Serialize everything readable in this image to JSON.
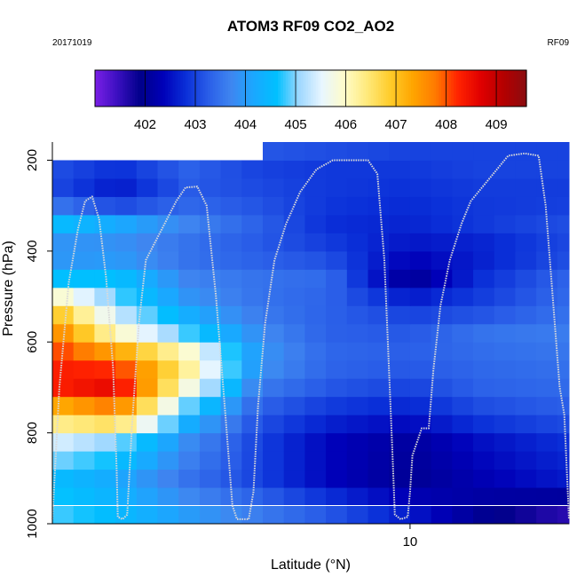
{
  "chart_data": {
    "type": "heatmap",
    "title": "ATOM3 RF09 CO2_AO2",
    "date_label": "20171019",
    "flight_label": "RF09",
    "xlabel": "Latitude (°N)",
    "ylabel": "Pressure (hPa)",
    "xlim": [
      -5.3,
      16.8
    ],
    "ylim": [
      1000,
      160
    ],
    "y_reversed": true,
    "x_ticks": [
      10
    ],
    "y_ticks": [
      200,
      400,
      600,
      800,
      1000
    ],
    "colorbar": {
      "min": 401.0,
      "max": 409.6,
      "tick_values": [
        402,
        403,
        404,
        405,
        406,
        407,
        408,
        409
      ],
      "tick_labels": [
        "402",
        "403",
        "404",
        "405",
        "406",
        "407",
        "408",
        "409"
      ],
      "colors": [
        "#7b1fe6",
        "#3a0fc0",
        "#00008a",
        "#0000b8",
        "#0a2fd8",
        "#2a5ee8",
        "#3f86f0",
        "#1aa8ff",
        "#00c0ff",
        "#9fd8ff",
        "#e8f6ff",
        "#fffcc8",
        "#ffe97a",
        "#ffcc2a",
        "#ffa500",
        "#ff7a00",
        "#ff2200",
        "#e00000",
        "#b40000",
        "#8a0c10"
      ]
    },
    "grid": {
      "lat_edges": [
        -5.3,
        -4.4,
        -3.5,
        -2.6,
        -1.7,
        -0.8,
        0.1,
        1.0,
        1.9,
        2.8,
        3.7,
        4.6,
        5.5,
        6.4,
        7.3,
        8.2,
        9.1,
        10.0,
        10.9,
        11.8,
        12.7,
        13.6,
        14.5,
        15.4,
        16.3,
        16.8
      ],
      "p_edges": [
        1000,
        960,
        920,
        880,
        840,
        800,
        760,
        720,
        680,
        640,
        600,
        560,
        520,
        480,
        440,
        400,
        360,
        320,
        280,
        240,
        200,
        160
      ],
      "anchor_lat": [
        -5.0,
        -2.5,
        0.5,
        3.5,
        6.5,
        10.0,
        13.0,
        16.5
      ],
      "anchor_p": [
        980,
        900,
        820,
        760,
        700,
        640,
        580,
        520,
        460,
        400,
        340,
        280,
        220,
        180
      ],
      "anchor_values": [
        [
          404.8,
          404.5,
          404.0,
          403.6,
          403.2,
          402.6,
          402.0,
          401.6
        ],
        [
          404.5,
          404.2,
          403.5,
          403.0,
          402.4,
          402.0,
          402.3,
          402.6
        ],
        [
          405.4,
          405.0,
          403.8,
          403.0,
          402.4,
          402.1,
          402.5,
          402.8
        ],
        [
          406.8,
          407.4,
          404.5,
          403.2,
          402.8,
          402.6,
          403.0,
          403.2
        ],
        [
          408.3,
          408.6,
          405.8,
          403.6,
          403.2,
          403.0,
          403.3,
          403.4
        ],
        [
          408.3,
          408.0,
          406.5,
          404.0,
          403.4,
          403.3,
          403.4,
          403.5
        ],
        [
          407.6,
          406.0,
          404.8,
          403.8,
          403.3,
          403.2,
          403.5,
          403.6
        ],
        [
          406.6,
          405.0,
          404.0,
          403.5,
          403.3,
          402.9,
          403.0,
          403.4
        ],
        [
          404.6,
          404.6,
          403.7,
          403.5,
          403.4,
          402.0,
          402.8,
          403.3
        ],
        [
          403.6,
          403.7,
          403.4,
          403.2,
          403.0,
          402.5,
          402.6,
          403.0
        ],
        [
          404.5,
          404.2,
          403.7,
          403.3,
          402.8,
          402.7,
          402.9,
          403.1
        ],
        [
          403.0,
          402.5,
          403.2,
          403.1,
          402.9,
          402.8,
          402.9,
          402.9
        ],
        [
          403.1,
          402.8,
          403.3,
          403.0,
          402.9,
          402.9,
          403.0,
          403.0
        ],
        [
          403.2,
          403.2,
          403.3,
          403.2,
          403.1,
          403.0,
          403.0,
          403.0
        ]
      ],
      "missing_region": {
        "lat_min": -5.3,
        "lat_max": 3.6,
        "p_min": 160,
        "p_max": 200
      }
    },
    "flight_track": [
      [
        -5.3,
        990
      ],
      [
        -5.0,
        700
      ],
      [
        -4.6,
        470
      ],
      [
        -4.2,
        350
      ],
      [
        -3.9,
        290
      ],
      [
        -3.6,
        280
      ],
      [
        -3.3,
        330
      ],
      [
        -3.0,
        460
      ],
      [
        -2.7,
        660
      ],
      [
        -2.55,
        880
      ],
      [
        -2.5,
        985
      ],
      [
        -2.3,
        990
      ],
      [
        -2.1,
        980
      ],
      [
        -1.9,
        790
      ],
      [
        -1.6,
        560
      ],
      [
        -1.3,
        420
      ],
      [
        0.0,
        290
      ],
      [
        0.4,
        260
      ],
      [
        0.9,
        258
      ],
      [
        1.3,
        300
      ],
      [
        1.7,
        500
      ],
      [
        2.1,
        760
      ],
      [
        2.4,
        960
      ],
      [
        2.6,
        990
      ],
      [
        3.1,
        990
      ],
      [
        3.3,
        930
      ],
      [
        3.5,
        740
      ],
      [
        3.8,
        560
      ],
      [
        4.2,
        420
      ],
      [
        4.7,
        340
      ],
      [
        5.3,
        270
      ],
      [
        6.0,
        220
      ],
      [
        6.7,
        200
      ],
      [
        7.5,
        200
      ],
      [
        8.2,
        200
      ],
      [
        8.6,
        230
      ],
      [
        8.9,
        420
      ],
      [
        9.1,
        660
      ],
      [
        9.25,
        850
      ],
      [
        9.35,
        980
      ],
      [
        9.6,
        990
      ],
      [
        9.9,
        985
      ],
      [
        10.0,
        930
      ],
      [
        10.1,
        850
      ],
      [
        10.5,
        790
      ],
      [
        10.8,
        790
      ],
      [
        11.0,
        660
      ],
      [
        11.3,
        520
      ],
      [
        11.7,
        420
      ],
      [
        12.2,
        340
      ],
      [
        12.6,
        290
      ],
      [
        14.2,
        190
      ],
      [
        14.9,
        185
      ],
      [
        15.5,
        190
      ],
      [
        15.8,
        300
      ],
      [
        16.1,
        500
      ],
      [
        16.4,
        700
      ],
      [
        16.6,
        760
      ],
      [
        16.8,
        990
      ]
    ],
    "surface_line_p": 960,
    "legend": "top"
  }
}
